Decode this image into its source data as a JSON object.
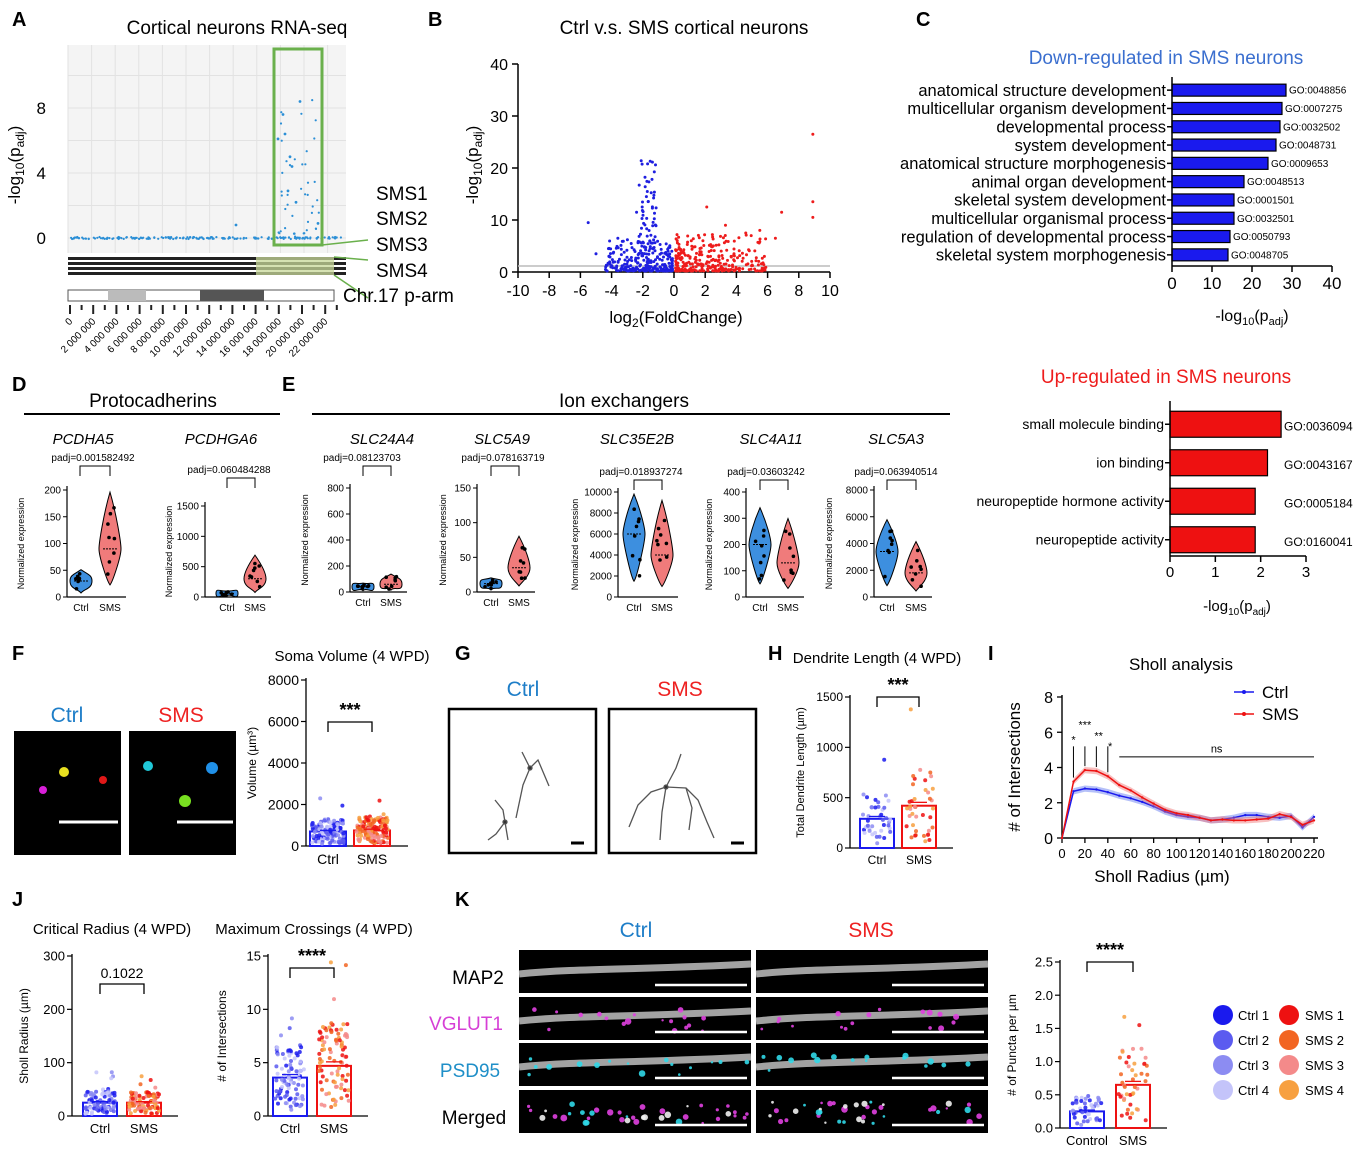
{
  "colors": {
    "blue": "#1f1fe0",
    "red": "#ee1c1c",
    "ctrl_text": "#1e7ec8",
    "sms_text": "#ee2222",
    "title_blue": "#3b6fcf",
    "green_box": "#6ab04c",
    "grey": "#555555"
  },
  "panel_letters": {
    "A": "A",
    "B": "B",
    "C": "C",
    "D": "D",
    "E": "E",
    "F": "F",
    "G": "G",
    "H": "H",
    "I": "I",
    "J": "J",
    "K": "K"
  },
  "panelA": {
    "title": "Cortical neurons RNA-seq",
    "ylabel": "-log10(padj)",
    "yticks": [
      "8",
      "4",
      "0"
    ],
    "sms_labels": [
      "SMS1",
      "SMS2",
      "SMS3",
      "SMS4"
    ],
    "chr_label": "Chr.17 p-arm",
    "xticks": [
      "0",
      "2 000 000",
      "4 000 000",
      "6 000 000",
      "8 000 000",
      "10 000 000",
      "12 000 000",
      "14 000 000",
      "16 000 000",
      "18 000 000",
      "20 000 000",
      "22 000 000"
    ]
  },
  "panelB": {
    "title": "Ctrl v.s. SMS cortical neurons",
    "xlabel": "log2(FoldChange)",
    "ylabel": "-log10(padj)",
    "xticks": [
      "-10",
      "-8",
      "-6",
      "-4",
      "-2",
      "0",
      "2",
      "4",
      "6",
      "8",
      "10"
    ],
    "yticks": [
      "40",
      "30",
      "20",
      "10",
      "0"
    ],
    "xlim": [
      -10,
      10
    ],
    "ylim": [
      0,
      40
    ]
  },
  "chart_data": [
    {
      "type": "bar",
      "id": "C_down",
      "title": "Down-regulated in SMS neurons",
      "xlabel": "-log10(padj)",
      "xlim": [
        0,
        40
      ],
      "xticks": [
        "0",
        "10",
        "20",
        "30",
        "40"
      ],
      "categories": [
        "anatomical structure development",
        "multicellular organism development",
        "developmental process",
        "system development",
        "anatomical structure morphogenesis",
        "animal organ development",
        "skeletal system development",
        "multicellular organismal process",
        "regulation of developmental process",
        "skeletal system morphogenesis"
      ],
      "go": [
        "GO:0048856",
        "GO:0007275",
        "GO:0032502",
        "GO:0048731",
        "GO:0009653",
        "GO:0048513",
        "GO:0001501",
        "GO:0032501",
        "GO:0050793",
        "GO:0048705"
      ],
      "values": [
        28.5,
        27.5,
        27,
        26,
        24,
        18,
        15.5,
        15.5,
        14.5,
        14
      ]
    },
    {
      "type": "bar",
      "id": "C_up",
      "title": "Up-regulated in SMS neurons",
      "xlabel": "-log10(padj)",
      "xlim": [
        0,
        3
      ],
      "xticks": [
        "0",
        "1",
        "2",
        "3"
      ],
      "categories": [
        "small molecule binding",
        "ion binding",
        "neuropeptide hormone activity",
        "neuropeptide activity"
      ],
      "go": [
        "GO:0036094",
        "GO:0043167",
        "GO:0005184",
        "GO:0160041"
      ],
      "values": [
        2.45,
        2.15,
        1.88,
        1.88
      ]
    },
    {
      "type": "violin",
      "id": "D_E",
      "group_title_D": "Protocadherins",
      "group_title_E": "Ion exchangers",
      "ylabel": "Normalized expression",
      "categories": [
        "Ctrl",
        "SMS"
      ],
      "genes": [
        {
          "name": "PCDHA5",
          "padj": "padj=0.001582492",
          "ylim": [
            0,
            200
          ],
          "yticks": [
            "200",
            "150",
            "100",
            "50",
            "0"
          ],
          "median": [
            30,
            90
          ]
        },
        {
          "name": "PCDHGA6",
          "padj": "padj=0.060484288",
          "ylim": [
            0,
            1500
          ],
          "yticks": [
            "1500",
            "1000",
            "500",
            "0"
          ],
          "median": [
            60,
            300
          ]
        },
        {
          "name": "SLC24A4",
          "padj": "padj=0.08123703",
          "ylim": [
            0,
            800
          ],
          "yticks": [
            "800",
            "600",
            "400",
            "200",
            "0"
          ],
          "median": [
            40,
            60
          ]
        },
        {
          "name": "SLC5A9",
          "padj": "padj=0.078163719",
          "ylim": [
            0,
            150
          ],
          "yticks": [
            "150",
            "100",
            "50",
            "0"
          ],
          "median": [
            12,
            35
          ]
        },
        {
          "name": "SLC35E2B",
          "padj": "padj=0.018937274",
          "ylim": [
            0,
            10000
          ],
          "yticks": [
            "10000",
            "8000",
            "6000",
            "4000",
            "2000",
            "0"
          ],
          "median": [
            6000,
            4000
          ]
        },
        {
          "name": "SLC4A11",
          "padj": "padj=0.03603242",
          "ylim": [
            0,
            400
          ],
          "yticks": [
            "400",
            "300",
            "200",
            "100",
            "0"
          ],
          "median": [
            200,
            130
          ]
        },
        {
          "name": "SLC5A3",
          "padj": "padj=0.063940514",
          "ylim": [
            0,
            8000
          ],
          "yticks": [
            "8000",
            "6000",
            "4000",
            "2000",
            "0"
          ],
          "median": [
            3400,
            1800
          ]
        }
      ]
    },
    {
      "type": "bar",
      "id": "F_soma",
      "title": "Soma Volume (4 WPD)",
      "ylabel": "Volume (µm³)",
      "categories": [
        "Ctrl",
        "SMS"
      ],
      "values": [
        700,
        750
      ],
      "ylim": [
        0,
        8000
      ],
      "yticks": [
        "8000",
        "6000",
        "4000",
        "2000",
        "0"
      ],
      "sig": "***"
    },
    {
      "type": "bar",
      "id": "H_dendrite",
      "title": "Dendrite Length (4 WPD)",
      "ylabel": "Total Dendrite Length (µm)",
      "categories": [
        "Ctrl",
        "SMS"
      ],
      "values": [
        290,
        420
      ],
      "ylim": [
        0,
        1500
      ],
      "yticks": [
        "1500",
        "1000",
        "500",
        "0"
      ],
      "sig": "***"
    },
    {
      "type": "line",
      "id": "I_sholl",
      "title": "Sholl analysis",
      "xlabel": "Sholl Radius (µm)",
      "ylabel": "# of Intersections",
      "xlim": [
        0,
        220
      ],
      "ylim": [
        0,
        8
      ],
      "xticks": [
        "0",
        "20",
        "40",
        "60",
        "80",
        "100",
        "120",
        "140",
        "160",
        "180",
        "200",
        "220"
      ],
      "yticks": [
        "8",
        "6",
        "4",
        "2",
        "0"
      ],
      "x": [
        0,
        10,
        20,
        30,
        40,
        50,
        60,
        70,
        80,
        90,
        100,
        110,
        120,
        130,
        140,
        150,
        160,
        170,
        180,
        190,
        200,
        210,
        220
      ],
      "series": [
        {
          "name": "Ctrl",
          "values": [
            0,
            2.65,
            2.8,
            2.75,
            2.6,
            2.4,
            2.25,
            2.05,
            1.8,
            1.5,
            1.3,
            1.2,
            1.15,
            1.0,
            1.05,
            1.15,
            1.3,
            1.3,
            1.2,
            1.15,
            1.25,
            0.6,
            1.2
          ]
        },
        {
          "name": "SMS",
          "values": [
            0,
            3.2,
            3.85,
            3.8,
            3.5,
            3.0,
            2.7,
            2.3,
            1.95,
            1.6,
            1.4,
            1.3,
            1.15,
            1.0,
            1.05,
            1.0,
            1.0,
            1.05,
            1.1,
            1.35,
            1.2,
            0.75,
            1.0
          ]
        }
      ],
      "sig_labels": [
        "*",
        "***",
        "**",
        "*",
        "ns"
      ]
    },
    {
      "type": "bar",
      "id": "J_radius",
      "title": "Critical Radius (4 WPD)",
      "ylabel": "Sholl Radius (µm)",
      "categories": [
        "Ctrl",
        "SMS"
      ],
      "values": [
        25,
        25
      ],
      "ylim": [
        0,
        300
      ],
      "yticks": [
        "300",
        "200",
        "100",
        "0"
      ],
      "sig": "0.1022"
    },
    {
      "type": "bar",
      "id": "J_cross",
      "title": "Maximum Crossings (4 WPD)",
      "ylabel": "# of Intersections",
      "categories": [
        "Ctrl",
        "SMS"
      ],
      "values": [
        3.6,
        4.7
      ],
      "ylim": [
        0,
        15
      ],
      "yticks": [
        "15",
        "10",
        "5",
        "0"
      ],
      "sig": "****"
    },
    {
      "type": "bar",
      "id": "K_puncta",
      "ylabel": "# of Puncta per µm",
      "categories": [
        "Control",
        "SMS"
      ],
      "values": [
        0.25,
        0.65
      ],
      "ylim": [
        0,
        2.5
      ],
      "yticks": [
        "2.5",
        "2.0",
        "1.5",
        "1.0",
        "0.5",
        "0.0"
      ],
      "sig": "****"
    }
  ],
  "panelF": {
    "ctrl": "Ctrl",
    "sms": "SMS"
  },
  "panelG": {
    "ctrl": "Ctrl",
    "sms": "SMS"
  },
  "panelK": {
    "ctrl": "Ctrl",
    "sms": "SMS",
    "rows": [
      "MAP2",
      "VGLUT1",
      "PSD95",
      "Merged"
    ]
  },
  "legend": {
    "ctrl": [
      {
        "label": "Ctrl 1",
        "color": "#1a1aee"
      },
      {
        "label": "Ctrl 2",
        "color": "#5b5bf0"
      },
      {
        "label": "Ctrl 3",
        "color": "#8c8cf2"
      },
      {
        "label": "Ctrl 4",
        "color": "#c4c4fa"
      }
    ],
    "sms": [
      {
        "label": "SMS 1",
        "color": "#ee1111"
      },
      {
        "label": "SMS 2",
        "color": "#f26522"
      },
      {
        "label": "SMS 3",
        "color": "#f48a8a"
      },
      {
        "label": "SMS 4",
        "color": "#f7a040"
      }
    ]
  }
}
